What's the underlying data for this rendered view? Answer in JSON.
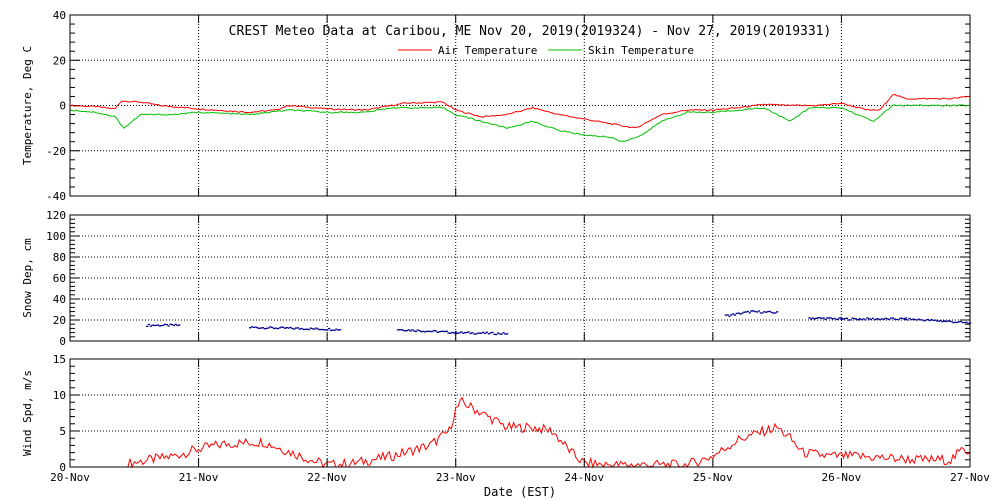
{
  "title": "CREST Meteo Data at Caribou, ME   Nov 20, 2019(2019324) - Nov 27, 2019(2019331)",
  "xlabel": "Date (EST)",
  "x_ticks": [
    "20-Nov",
    "21-Nov",
    "22-Nov",
    "23-Nov",
    "24-Nov",
    "25-Nov",
    "26-Nov",
    "27-Nov"
  ],
  "colors": {
    "air": "#ff0000",
    "skin": "#00c000",
    "snow": "#000090",
    "wind": "#ff0000"
  },
  "chart_data": [
    {
      "type": "line",
      "ylabel": "Temperature, Deg C",
      "ylim": [
        -40,
        40
      ],
      "yticks": [
        -40,
        -20,
        0,
        20,
        40
      ],
      "xlim": [
        0,
        7
      ],
      "grid": true,
      "legend": "top-center",
      "series": [
        {
          "name": "Air Temperature",
          "color": "#ff0000",
          "points": [
            [
              0,
              0
            ],
            [
              0.2,
              -0.5
            ],
            [
              0.35,
              -1.5
            ],
            [
              0.4,
              2
            ],
            [
              0.55,
              1.5
            ],
            [
              0.7,
              0
            ],
            [
              1.0,
              -1.5
            ],
            [
              1.4,
              -3
            ],
            [
              1.6,
              -2
            ],
            [
              1.7,
              0
            ],
            [
              2.0,
              -1.5
            ],
            [
              2.3,
              -2
            ],
            [
              2.5,
              0
            ],
            [
              2.6,
              1
            ],
            [
              2.9,
              1.5
            ],
            [
              3.0,
              -2
            ],
            [
              3.2,
              -5
            ],
            [
              3.4,
              -4
            ],
            [
              3.6,
              -1
            ],
            [
              3.8,
              -4
            ],
            [
              4.2,
              -8
            ],
            [
              4.3,
              -9
            ],
            [
              4.4,
              -10
            ],
            [
              4.6,
              -4
            ],
            [
              4.8,
              -2
            ],
            [
              5.0,
              -2
            ],
            [
              5.2,
              -1
            ],
            [
              5.4,
              0.5
            ],
            [
              5.6,
              0
            ],
            [
              5.8,
              0
            ],
            [
              6.0,
              1
            ],
            [
              6.2,
              -2
            ],
            [
              6.3,
              -2
            ],
            [
              6.4,
              5
            ],
            [
              6.5,
              3
            ],
            [
              6.7,
              3
            ],
            [
              6.85,
              3
            ],
            [
              7.0,
              4
            ]
          ]
        },
        {
          "name": "Skin Temperature",
          "color": "#00c000",
          "points": [
            [
              0,
              -2
            ],
            [
              0.2,
              -3
            ],
            [
              0.35,
              -5
            ],
            [
              0.42,
              -10
            ],
            [
              0.55,
              -4
            ],
            [
              0.8,
              -4
            ],
            [
              1.0,
              -3
            ],
            [
              1.4,
              -4
            ],
            [
              1.7,
              -2
            ],
            [
              2.0,
              -3
            ],
            [
              2.3,
              -3
            ],
            [
              2.5,
              -1
            ],
            [
              2.9,
              -1
            ],
            [
              3.0,
              -4
            ],
            [
              3.2,
              -7
            ],
            [
              3.4,
              -10
            ],
            [
              3.6,
              -7
            ],
            [
              3.8,
              -11
            ],
            [
              4.0,
              -13
            ],
            [
              4.2,
              -14
            ],
            [
              4.3,
              -16
            ],
            [
              4.45,
              -13
            ],
            [
              4.6,
              -7
            ],
            [
              4.8,
              -3
            ],
            [
              5.0,
              -3
            ],
            [
              5.2,
              -2
            ],
            [
              5.4,
              -1
            ],
            [
              5.6,
              -7
            ],
            [
              5.75,
              -1
            ],
            [
              6.0,
              -1
            ],
            [
              6.25,
              -7
            ],
            [
              6.4,
              0
            ],
            [
              6.6,
              0
            ],
            [
              7.0,
              0
            ]
          ]
        }
      ]
    },
    {
      "type": "scatter",
      "ylabel": "Snow Dep, cm",
      "ylim": [
        0,
        120
      ],
      "yticks": [
        0,
        20,
        40,
        60,
        80,
        100,
        120
      ],
      "xlim": [
        0,
        7
      ],
      "grid": true,
      "series": [
        {
          "name": "",
          "color": "#000090",
          "segments": [
            [
              [
                0.6,
                15
              ],
              [
                0.85,
                15
              ]
            ],
            [
              [
                1.4,
                13
              ],
              [
                2.1,
                11
              ]
            ],
            [
              [
                2.55,
                11
              ],
              [
                3.0,
                8
              ],
              [
                3.4,
                7
              ]
            ],
            [
              [
                5.1,
                24
              ],
              [
                5.3,
                28
              ],
              [
                5.5,
                27
              ]
            ],
            [
              [
                5.75,
                22
              ],
              [
                6.0,
                21
              ],
              [
                6.5,
                21
              ],
              [
                6.8,
                19
              ],
              [
                7.0,
                17
              ]
            ]
          ]
        }
      ]
    },
    {
      "type": "line",
      "ylabel": "Wind Spd, m/s",
      "ylim": [
        0,
        15
      ],
      "yticks": [
        0,
        5,
        10,
        15
      ],
      "xlim": [
        0,
        7
      ],
      "grid": true,
      "series": [
        {
          "name": "",
          "color": "#ff0000",
          "points": [
            [
              0.45,
              0.5
            ],
            [
              0.8,
              1.5
            ],
            [
              1.0,
              2.5
            ],
            [
              1.2,
              3.2
            ],
            [
              1.5,
              3.5
            ],
            [
              1.8,
              1.5
            ],
            [
              1.9,
              0.8
            ],
            [
              2.0,
              0.3
            ],
            [
              2.2,
              0.5
            ],
            [
              2.5,
              1.5
            ],
            [
              2.8,
              3
            ],
            [
              2.95,
              5
            ],
            [
              3.0,
              8
            ],
            [
              3.05,
              9
            ],
            [
              3.2,
              7.5
            ],
            [
              3.4,
              5.5
            ],
            [
              3.6,
              5.5
            ],
            [
              3.75,
              5
            ],
            [
              3.9,
              2
            ],
            [
              4.0,
              0.5
            ],
            [
              4.2,
              0.3
            ],
            [
              4.5,
              0.3
            ],
            [
              4.8,
              0.3
            ],
            [
              5.0,
              1.5
            ],
            [
              5.2,
              3.8
            ],
            [
              5.4,
              5
            ],
            [
              5.5,
              5.5
            ],
            [
              5.6,
              4
            ],
            [
              5.7,
              2
            ],
            [
              5.9,
              1.5
            ],
            [
              6.1,
              1.5
            ],
            [
              6.3,
              1.3
            ],
            [
              6.6,
              1
            ],
            [
              6.85,
              1
            ],
            [
              6.95,
              2.5
            ],
            [
              7.0,
              2
            ]
          ]
        }
      ]
    }
  ]
}
